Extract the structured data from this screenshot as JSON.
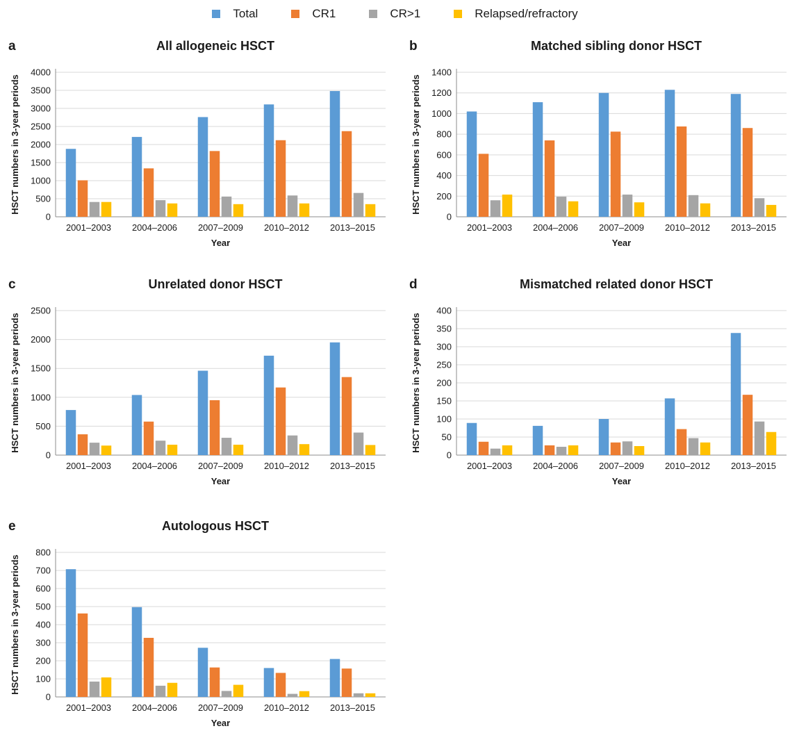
{
  "legend": [
    {
      "name": "Total",
      "color": "#5b9bd5"
    },
    {
      "name": "CR1",
      "color": "#ed7d31"
    },
    {
      "name": "CR>1",
      "color": "#a5a5a5"
    },
    {
      "name": "Relapsed/refractory",
      "color": "#ffc000"
    }
  ],
  "chart_data": [
    {
      "type": "bar",
      "letter": "a",
      "title": "All allogeneic HSCT",
      "xlabel": "Year",
      "ylabel": "HSCT numbers in 3-year periods",
      "ylim": [
        0,
        4000
      ],
      "yticks": [
        0,
        500,
        1000,
        1500,
        2000,
        2500,
        3000,
        3500,
        4000
      ],
      "grid": true,
      "categories": [
        "2001–2003",
        "2004–2006",
        "2007–2009",
        "2010–2012",
        "2013–2015"
      ],
      "series": [
        {
          "name": "Total",
          "values": [
            1880,
            2210,
            2760,
            3110,
            3480
          ]
        },
        {
          "name": "CR1",
          "values": [
            1010,
            1340,
            1820,
            2120,
            2370
          ]
        },
        {
          "name": "CR>1",
          "values": [
            410,
            460,
            560,
            590,
            660
          ]
        },
        {
          "name": "Relapsed/refractory",
          "values": [
            410,
            370,
            350,
            370,
            350
          ]
        }
      ]
    },
    {
      "type": "bar",
      "letter": "b",
      "title": "Matched sibling donor HSCT",
      "xlabel": "Year",
      "ylabel": "HSCT numbers in 3-year periods",
      "ylim": [
        0,
        1400
      ],
      "yticks": [
        0,
        200,
        400,
        600,
        800,
        1000,
        1200,
        1400
      ],
      "grid": true,
      "categories": [
        "2001–2003",
        "2004–2006",
        "2007–2009",
        "2010–2012",
        "2013–2015"
      ],
      "series": [
        {
          "name": "Total",
          "values": [
            1020,
            1110,
            1200,
            1230,
            1190
          ]
        },
        {
          "name": "CR1",
          "values": [
            610,
            740,
            825,
            875,
            860
          ]
        },
        {
          "name": "CR>1",
          "values": [
            160,
            195,
            215,
            210,
            180
          ]
        },
        {
          "name": "Relapsed/refractory",
          "values": [
            215,
            150,
            140,
            130,
            115
          ]
        }
      ]
    },
    {
      "type": "bar",
      "letter": "c",
      "title": "Unrelated donor HSCT",
      "xlabel": "Year",
      "ylabel": "HSCT numbers in 3-year periods",
      "ylim": [
        0,
        2500
      ],
      "yticks": [
        0,
        500,
        1000,
        1500,
        2000,
        2500
      ],
      "grid": true,
      "categories": [
        "2001–2003",
        "2004–2006",
        "2007–2009",
        "2010–2012",
        "2013–2015"
      ],
      "series": [
        {
          "name": "Total",
          "values": [
            780,
            1040,
            1460,
            1720,
            1950
          ]
        },
        {
          "name": "CR1",
          "values": [
            360,
            580,
            950,
            1170,
            1350
          ]
        },
        {
          "name": "CR>1",
          "values": [
            215,
            250,
            300,
            340,
            390
          ]
        },
        {
          "name": "Relapsed/refractory",
          "values": [
            165,
            180,
            180,
            190,
            175
          ]
        }
      ]
    },
    {
      "type": "bar",
      "letter": "d",
      "title": "Mismatched related donor HSCT",
      "xlabel": "Year",
      "ylabel": "HSCT numbers in 3-year periods",
      "ylim": [
        0,
        400
      ],
      "yticks": [
        0,
        50,
        100,
        150,
        200,
        250,
        300,
        350,
        400
      ],
      "grid": true,
      "categories": [
        "2001–2003",
        "2004–2006",
        "2007–2009",
        "2010–2012",
        "2013–2015"
      ],
      "series": [
        {
          "name": "Total",
          "values": [
            89,
            81,
            100,
            157,
            338
          ]
        },
        {
          "name": "CR1",
          "values": [
            37,
            27,
            35,
            72,
            167
          ]
        },
        {
          "name": "CR>1",
          "values": [
            18,
            23,
            38,
            47,
            93
          ]
        },
        {
          "name": "Relapsed/refractory",
          "values": [
            27,
            27,
            25,
            35,
            64
          ]
        }
      ]
    },
    {
      "type": "bar",
      "letter": "e",
      "title": "Autologous HSCT",
      "xlabel": "Year",
      "ylabel": "HSCT numbers in 3-year periods",
      "ylim": [
        0,
        800
      ],
      "yticks": [
        0,
        100,
        200,
        300,
        400,
        500,
        600,
        700,
        800
      ],
      "grid": true,
      "categories": [
        "2001–2003",
        "2004–2006",
        "2007–2009",
        "2010–2012",
        "2013–2015"
      ],
      "series": [
        {
          "name": "Total",
          "values": [
            707,
            497,
            272,
            160,
            210
          ]
        },
        {
          "name": "CR1",
          "values": [
            462,
            327,
            163,
            133,
            157
          ]
        },
        {
          "name": "CR>1",
          "values": [
            85,
            62,
            33,
            17,
            20
          ]
        },
        {
          "name": "Relapsed/refractory",
          "values": [
            108,
            78,
            67,
            32,
            20
          ]
        }
      ]
    }
  ]
}
